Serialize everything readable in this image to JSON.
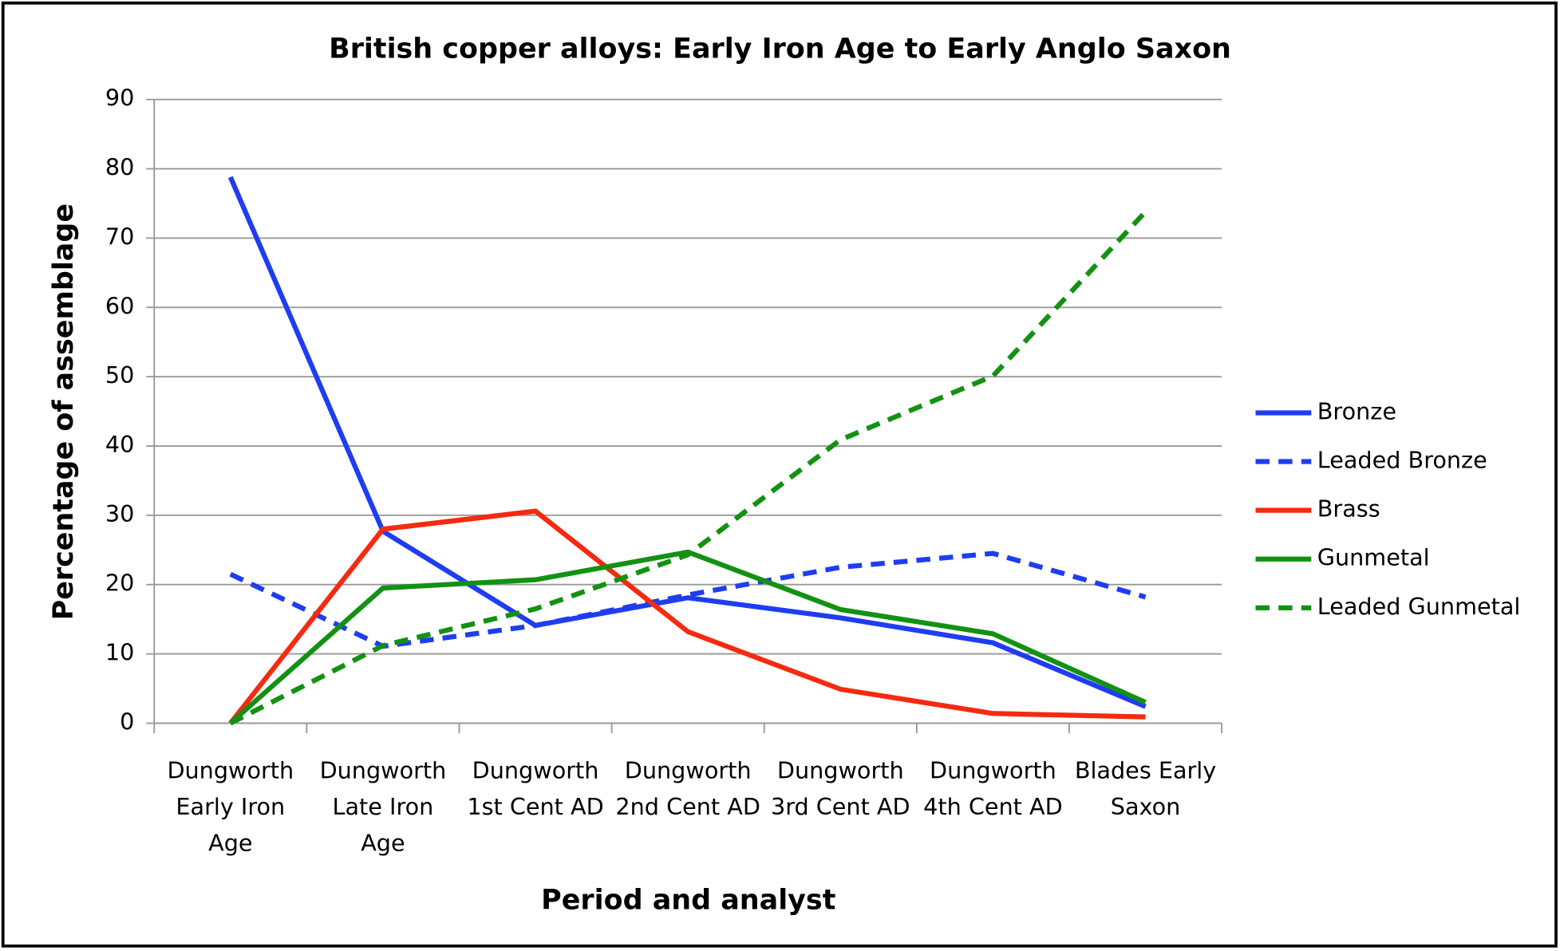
{
  "chart_data": {
    "type": "line",
    "title": "British copper alloys: Early Iron Age to Early Anglo Saxon",
    "x_label": "Period and analyst",
    "y_label": "Percentage of assemblage",
    "categories": [
      "Dungworth Early Iron Age",
      "Dungworth Late Iron Age",
      "Dungworth 1st Cent AD",
      "Dungworth 2nd Cent AD",
      "Dungworth 3rd Cent AD",
      "Dungworth 4th Cent AD",
      "Blades Early Saxon"
    ],
    "series": [
      {
        "name": "Bronze",
        "color": "#1f3df0",
        "dashed": false,
        "values": [
          78.8,
          27.7,
          14.1,
          18.1,
          15.2,
          11.6,
          2.4
        ]
      },
      {
        "name": "Leaded Bronze",
        "color": "#1f3df0",
        "dashed": true,
        "values": [
          21.5,
          11.1,
          14.1,
          18.5,
          22.5,
          24.5,
          18.2
        ]
      },
      {
        "name": "Brass",
        "color": "#f52a10",
        "dashed": false,
        "values": [
          0,
          28,
          30.6,
          13.2,
          4.9,
          1.4,
          0.9
        ]
      },
      {
        "name": "Gunmetal",
        "color": "#139113",
        "dashed": false,
        "values": [
          0,
          19.5,
          20.7,
          24.7,
          16.4,
          12.9,
          3
        ]
      },
      {
        "name": "Leaded Gunmetal",
        "color": "#139113",
        "dashed": true,
        "values": [
          0,
          11.2,
          16.5,
          24.3,
          40.9,
          50.1,
          73.8
        ]
      }
    ],
    "ylim": [
      0,
      90
    ],
    "yticks": [
      0,
      10,
      20,
      30,
      40,
      50,
      60,
      70,
      80,
      90
    ],
    "grid": true,
    "legend": "right"
  }
}
